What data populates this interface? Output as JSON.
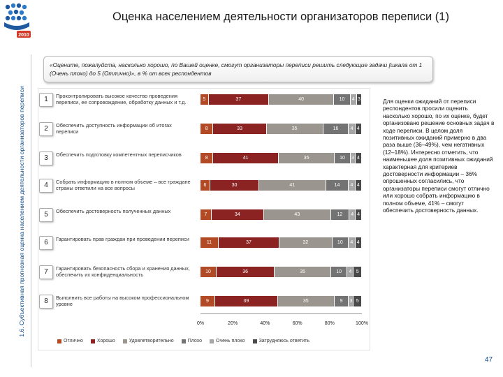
{
  "title": "Оценка населением деятельности организаторов переписи (1)",
  "side_caption": "1.6. Субъективная прогнозная оценка населением деятельности организаторов переписи",
  "logo_year": "2010",
  "question": "«Оцените, пожалуйста, насколько хорошо, по Вашей оценке, смогут организаторы переписи решить следующие задачи [шкала от 1 (Очень плохо) до 5 (Отлично)», в % от всех респондентов",
  "colors": [
    "#b34a26",
    "#8a2322",
    "#9a958e",
    "#737373",
    "#a6a6a6",
    "#4a4a4a"
  ],
  "chart_data": {
    "type": "bar",
    "orientation": "horizontal-stacked-100",
    "categories": [
      "Проконтролировать высокое качество проведения переписи, ее сопровождение, обработку данных и т.д.",
      "Обеспечить доступность информации об итогах переписи",
      "Обеспечить подготовку компетентных переписчиков",
      "Собрать информацию в полном объеме – все граждане страны ответили на все вопросы",
      "Обеспечить достоверность полученных данных",
      "Гарантировать прав граждан при проведении переписи",
      "Гарантировать безопасность сбора и хранения данных, обеспечить их конфиденциальность",
      "Выполнить все работы на высоком профессиональном уровне"
    ],
    "numbers": [
      "1",
      "2",
      "3",
      "4",
      "5",
      "6",
      "7",
      "8"
    ],
    "series": [
      {
        "name": "Отлично",
        "values": [
          5,
          8,
          8,
          6,
          7,
          11,
          10,
          9
        ]
      },
      {
        "name": "Хорошо",
        "values": [
          37,
          33,
          41,
          30,
          34,
          37,
          36,
          39
        ]
      },
      {
        "name": "Удовлетворительно",
        "values": [
          40,
          35,
          35,
          41,
          43,
          32,
          35,
          35
        ]
      },
      {
        "name": "Плохо",
        "values": [
          10,
          16,
          10,
          14,
          12,
          10,
          10,
          9
        ]
      },
      {
        "name": "Очень плохо",
        "values": [
          4,
          4,
          3,
          4,
          4,
          4,
          4,
          3
        ]
      },
      {
        "name": "Затрудняюсь ответить",
        "values": [
          3,
          4,
          4,
          4,
          4,
          4,
          5,
          5
        ]
      }
    ],
    "xlim": [
      0,
      100
    ],
    "xticks": [
      "0%",
      "20%",
      "40%",
      "60%",
      "80%",
      "100%"
    ],
    "legend": [
      "Отлично",
      "Хорошо",
      "Удовлетворительно",
      "Плохо",
      "Очень плохо",
      "Затрудняюсь ответить"
    ]
  },
  "note": "Для оценки ожиданий от переписи респондентов просили оценить насколько хорошо, по их оценке, будет организовано решение основных задач в ходе переписи. В целом доля позитивных ожиданий примерно в два раза выше (36–49%), чем негативных (12–18%). Интересно отметить, что наименьшее доля позитивных ожиданий характерная для критериев достоверности информации – 36% опрошенных согласились, что организаторы переписи смогут отлично или хорошо собрать информацию в полном объеме, 41% – смогут обеспечить достоверность данных.",
  "page_number": "47"
}
